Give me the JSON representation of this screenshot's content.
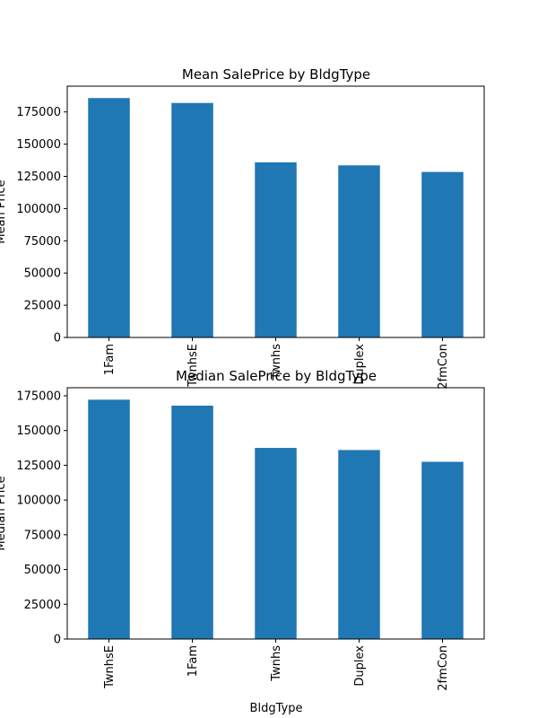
{
  "chart_data": [
    {
      "type": "bar",
      "title": "Mean SalePrice by BldgType",
      "ylabel": "Mean Price",
      "xlabel": "",
      "categories": [
        "1Fam",
        "TwnhsE",
        "Twnhs",
        "Duplex",
        "2fmCon"
      ],
      "values": [
        185764,
        181959,
        135912,
        133541,
        128432
      ],
      "ylim": [
        0,
        195000
      ],
      "yticks": [
        "0",
        "25000",
        "50000",
        "75000",
        "100000",
        "125000",
        "150000",
        "175000"
      ],
      "color": "#1f77b4",
      "grid": false
    },
    {
      "type": "bar",
      "title": "Median SalePrice by BldgType",
      "ylabel": "Median Price",
      "xlabel": "BldgType",
      "categories": [
        "TwnhsE",
        "1Fam",
        "Twnhs",
        "Duplex",
        "2fmCon"
      ],
      "values": [
        172200,
        167900,
        137500,
        135980,
        127500
      ],
      "ylim": [
        0,
        180800
      ],
      "yticks": [
        "0",
        "25000",
        "50000",
        "75000",
        "100000",
        "125000",
        "150000",
        "175000"
      ],
      "color": "#1f77b4",
      "grid": false
    }
  ]
}
